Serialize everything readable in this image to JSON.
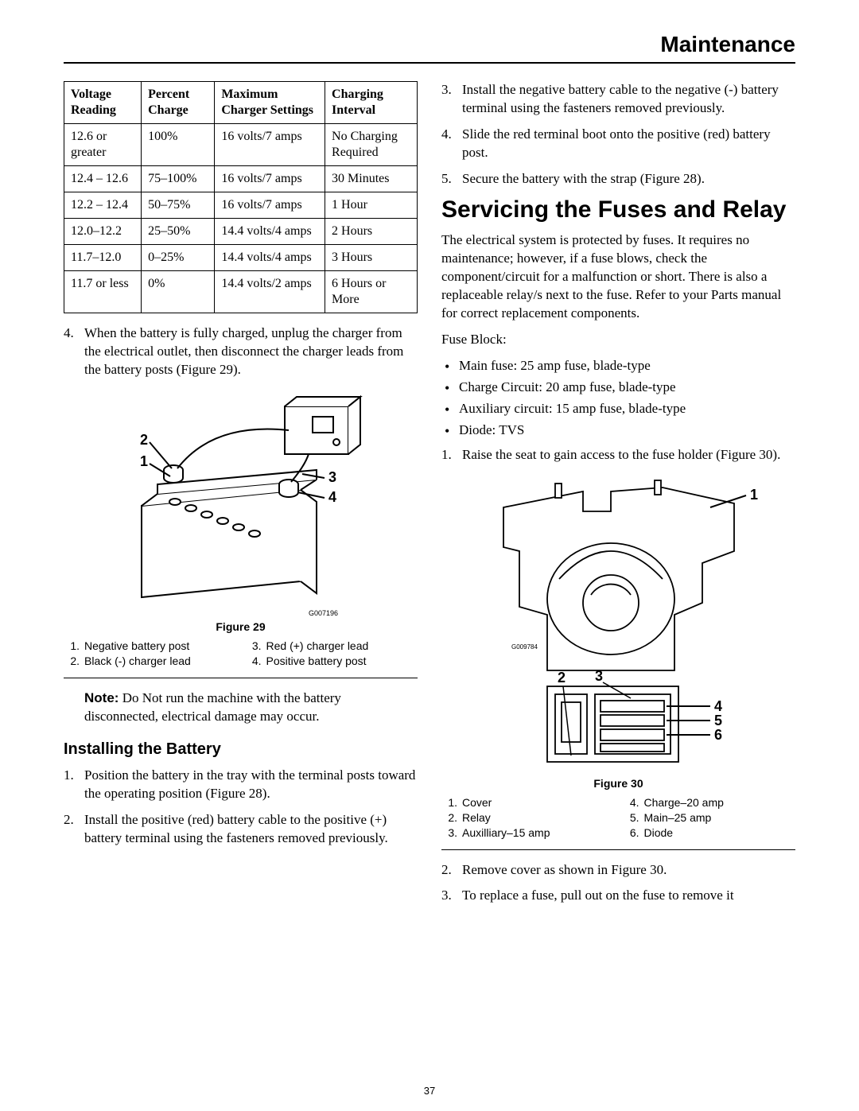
{
  "header": {
    "title": "Maintenance"
  },
  "page_number": "37",
  "charge_table": {
    "columns": [
      "Voltage Reading",
      "Percent Charge",
      "Maximum Charger Settings",
      "Charging Interval"
    ],
    "rows": [
      [
        "12.6 or greater",
        "100%",
        "16 volts/7 amps",
        "No Charging Required"
      ],
      [
        "12.4 – 12.6",
        "75–100%",
        "16 volts/7 amps",
        "30 Minutes"
      ],
      [
        "12.2 – 12.4",
        "50–75%",
        "16 volts/7 amps",
        "1 Hour"
      ],
      [
        "12.0–12.2",
        "25–50%",
        "14.4 volts/4 amps",
        "2 Hours"
      ],
      [
        "11.7–12.0",
        "0–25%",
        "14.4 volts/4 amps",
        "3 Hours"
      ],
      [
        "11.7 or less",
        "0%",
        "14.4 volts/2 amps",
        "6 Hours or More"
      ]
    ]
  },
  "left": {
    "step4": "When the battery is fully charged, unplug the charger from the electrical outlet, then disconnect the charger leads from the battery posts (Figure 29).",
    "fig29": {
      "id": "G007196",
      "caption": "Figure 29",
      "legend": [
        [
          "1.",
          "Negative battery post"
        ],
        [
          "2.",
          "Black (-) charger lead"
        ],
        [
          "3.",
          "Red (+) charger lead"
        ],
        [
          "4.",
          "Positive battery post"
        ]
      ]
    },
    "note_label": "Note:",
    "note": " Do Not run the machine with the battery disconnected, electrical damage may occur.",
    "install_heading": "Installing the Battery",
    "install_steps": [
      "Position the battery in the tray with the terminal posts toward the operating position (Figure 28).",
      "Install the positive (red) battery cable to the positive (+) battery terminal using the fasteners removed previously."
    ]
  },
  "right": {
    "steps_cont": [
      "Install the negative battery cable to the negative (-) battery terminal using the fasteners removed previously.",
      "Slide the red terminal boot onto the positive (red) battery post.",
      "Secure the battery with the strap (Figure 28)."
    ],
    "fuses_heading": "Servicing the Fuses and Relay",
    "fuses_para": "The electrical system is protected by fuses. It requires no maintenance; however, if a fuse blows, check the component/circuit for a malfunction or short. There is also a replaceable relay/s next to the fuse. Refer to your Parts manual for correct replacement components.",
    "fuse_block_label": "Fuse Block:",
    "fuse_bullets": [
      "Main fuse: 25 amp fuse, blade-type",
      "Charge Circuit: 20 amp fuse, blade-type",
      "Auxiliary circuit: 15 amp fuse, blade-type",
      "Diode: TVS"
    ],
    "fuses_step1": "Raise the seat to gain access to the fuse holder (Figure 30).",
    "fig30": {
      "id": "G009784",
      "caption": "Figure 30",
      "legend": [
        [
          "1.",
          "Cover"
        ],
        [
          "2.",
          "Relay"
        ],
        [
          "3.",
          "Auxilliary–15 amp"
        ],
        [
          "4.",
          "Charge–20 amp"
        ],
        [
          "5.",
          "Main–25 amp"
        ],
        [
          "6.",
          "Diode"
        ]
      ]
    },
    "fuses_steps_after": [
      "Remove cover as shown in Figure 30.",
      "To replace a fuse, pull out on the fuse to remove it"
    ]
  }
}
